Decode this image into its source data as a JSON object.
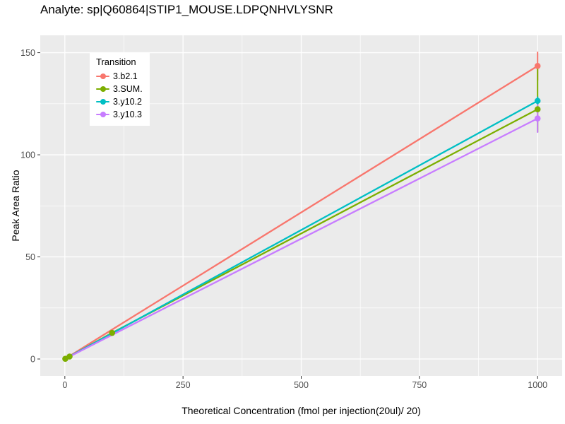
{
  "chart_data": {
    "type": "line",
    "title": "Analyte: sp|Q60864|STIP1_MOUSE.LDPQNHVLYSNR",
    "xlabel": "Theoretical Concentration (fmol per injection(20ul)/ 20)",
    "ylabel": "Peak Area Ratio",
    "x_ticks": [
      0,
      250,
      500,
      750,
      1000
    ],
    "y_ticks": [
      0,
      50,
      100,
      150
    ],
    "x_minor_gridlines": [
      125,
      375,
      625,
      875
    ],
    "y_minor_gridlines": [
      25,
      75,
      125
    ],
    "xlim": [
      -52,
      1052
    ],
    "ylim": [
      -8.3,
      158.5
    ],
    "grid": true,
    "panel_bg": "#EBEBEB",
    "grid_color": "#FFFFFF",
    "tick_label_color": "#4D4D4D",
    "tick_mark_color": "#333333",
    "legend": {
      "title": "Transition",
      "position": "inside-top-left"
    },
    "x": [
      1,
      10,
      100,
      1000
    ],
    "series": [
      {
        "name": "3.b2.1",
        "color": "#F8766D",
        "values": [
          0.14,
          1.44,
          14.4,
          143.5
        ],
        "marker_x": [
          1000
        ],
        "errorbars": [
          {
            "x": 1000,
            "ymin": 136.5,
            "ymax": 150.5
          }
        ]
      },
      {
        "name": "3.SUM.",
        "color": "#7CAE00",
        "values": [
          0.12,
          1.22,
          12.8,
          122.3
        ],
        "marker_x": [
          1,
          10,
          100,
          1000
        ],
        "errorbars": [
          {
            "x": 1000,
            "ymin": 111.0,
            "ymax": 142.3
          }
        ]
      },
      {
        "name": "3.y10.2",
        "color": "#00BFC4",
        "values": [
          0.13,
          1.26,
          12.6,
          126.4
        ],
        "marker_x": [
          1000
        ],
        "errorbars": [
          {
            "x": 1000,
            "ymin": 124.5,
            "ymax": 128.5
          }
        ]
      },
      {
        "name": "3.y10.3",
        "color": "#C77CFF",
        "values": [
          0.12,
          1.18,
          11.8,
          117.8
        ],
        "marker_x": [
          1000
        ],
        "errorbars": [
          {
            "x": 1000,
            "ymin": 110.8,
            "ymax": 124.8
          }
        ]
      }
    ]
  }
}
